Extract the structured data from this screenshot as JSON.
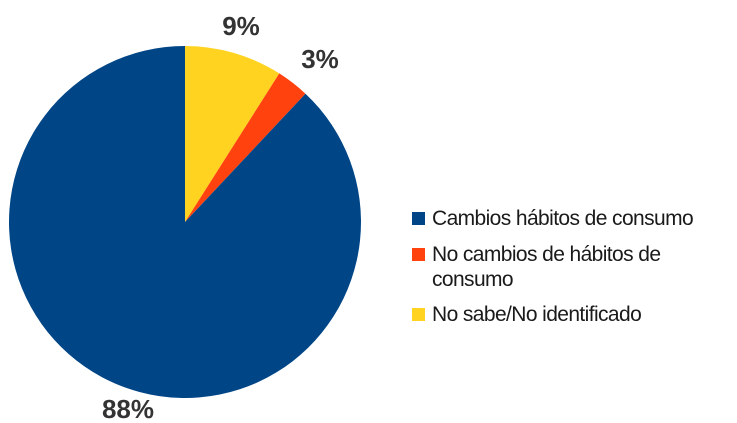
{
  "chart_data": {
    "type": "pie",
    "title": "",
    "slices": [
      {
        "label": "No sabe/No identificado",
        "value": 9,
        "display": "9%",
        "color": "#FFD320"
      },
      {
        "label": "No cambios de hábitos de consumo",
        "value": 3,
        "display": "3%",
        "color": "#FF420E"
      },
      {
        "label": "Cambios hábitos de consumo",
        "value": 88,
        "display": "88%",
        "color": "#004586"
      }
    ],
    "legend": {
      "placement": "right",
      "entries": [
        {
          "label": "Cambios hábitos de consumo",
          "color": "#004586"
        },
        {
          "label": "No cambios de hábitos de consumo",
          "color": "#FF420E"
        },
        {
          "label": "No sabe/No identificado",
          "color": "#FFD320"
        }
      ]
    }
  }
}
